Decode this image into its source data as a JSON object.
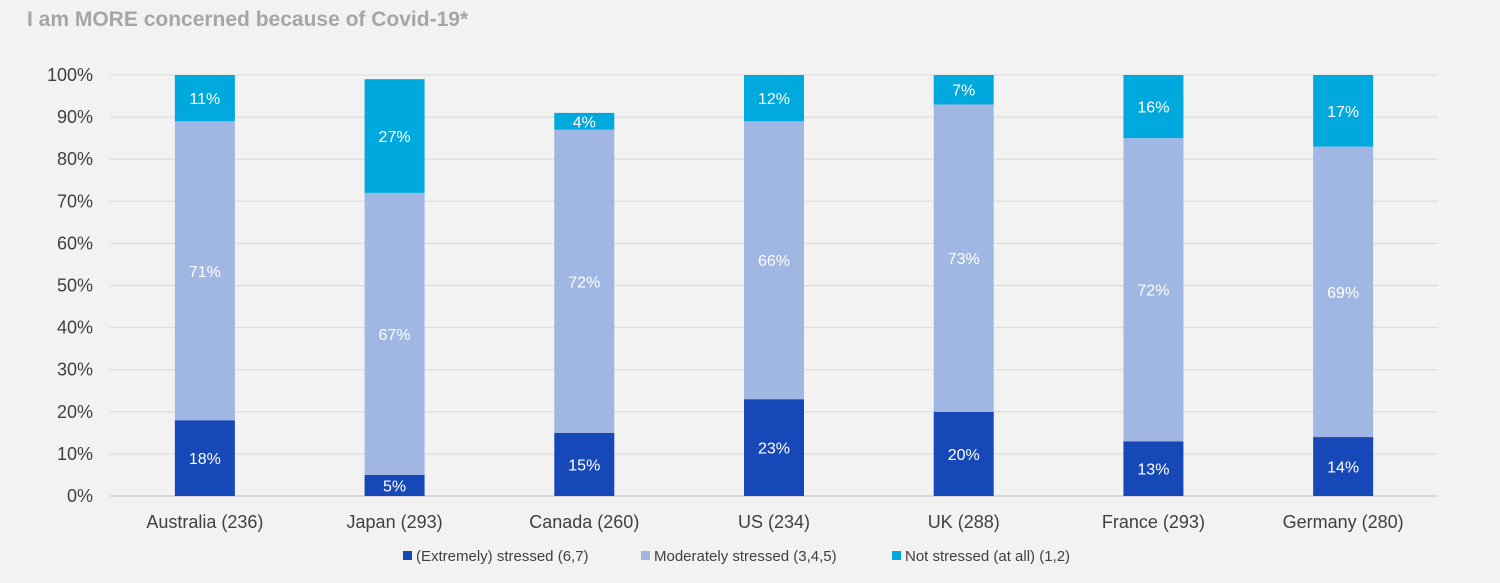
{
  "chart_data": {
    "type": "bar",
    "stacked": true,
    "title": "I am MORE concerned because of Covid-19*",
    "categories": [
      "Australia (236)",
      "Japan (293)",
      "Canada (260)",
      "US (234)",
      "UK (288)",
      "France (293)",
      "Germany (280)"
    ],
    "series": [
      {
        "name": "(Extremely) stressed (6,7)",
        "color": "#1748b8",
        "label_color": "#ffffff",
        "values": [
          18,
          5,
          15,
          23,
          20,
          13,
          14
        ],
        "labels": [
          "18%",
          "5%",
          "15%",
          "23%",
          "20%",
          "13%",
          "14%"
        ]
      },
      {
        "name": "Moderately stressed (3,4,5)",
        "color": "#a1b7e3",
        "label_color": "#ffffff",
        "values": [
          71,
          67,
          72,
          66,
          73,
          72,
          69
        ],
        "labels": [
          "71%",
          "67%",
          "72%",
          "66%",
          "73%",
          "72%",
          "69%"
        ]
      },
      {
        "name": "Not stressed (at all) (1,2)",
        "color": "#00a9dd",
        "label_color": "#ffffff",
        "values": [
          11,
          27,
          4,
          12,
          7,
          16,
          17
        ],
        "labels": [
          "11%",
          "27%",
          "4%",
          "12%",
          "7%",
          "16%",
          "17%"
        ]
      }
    ],
    "ylim": [
      0,
      100
    ],
    "yticks": [
      "0%",
      "10%",
      "20%",
      "30%",
      "40%",
      "50%",
      "60%",
      "70%",
      "80%",
      "90%",
      "100%"
    ],
    "grid": true,
    "legend_position": "bottom",
    "xlabel": "",
    "ylabel": ""
  }
}
